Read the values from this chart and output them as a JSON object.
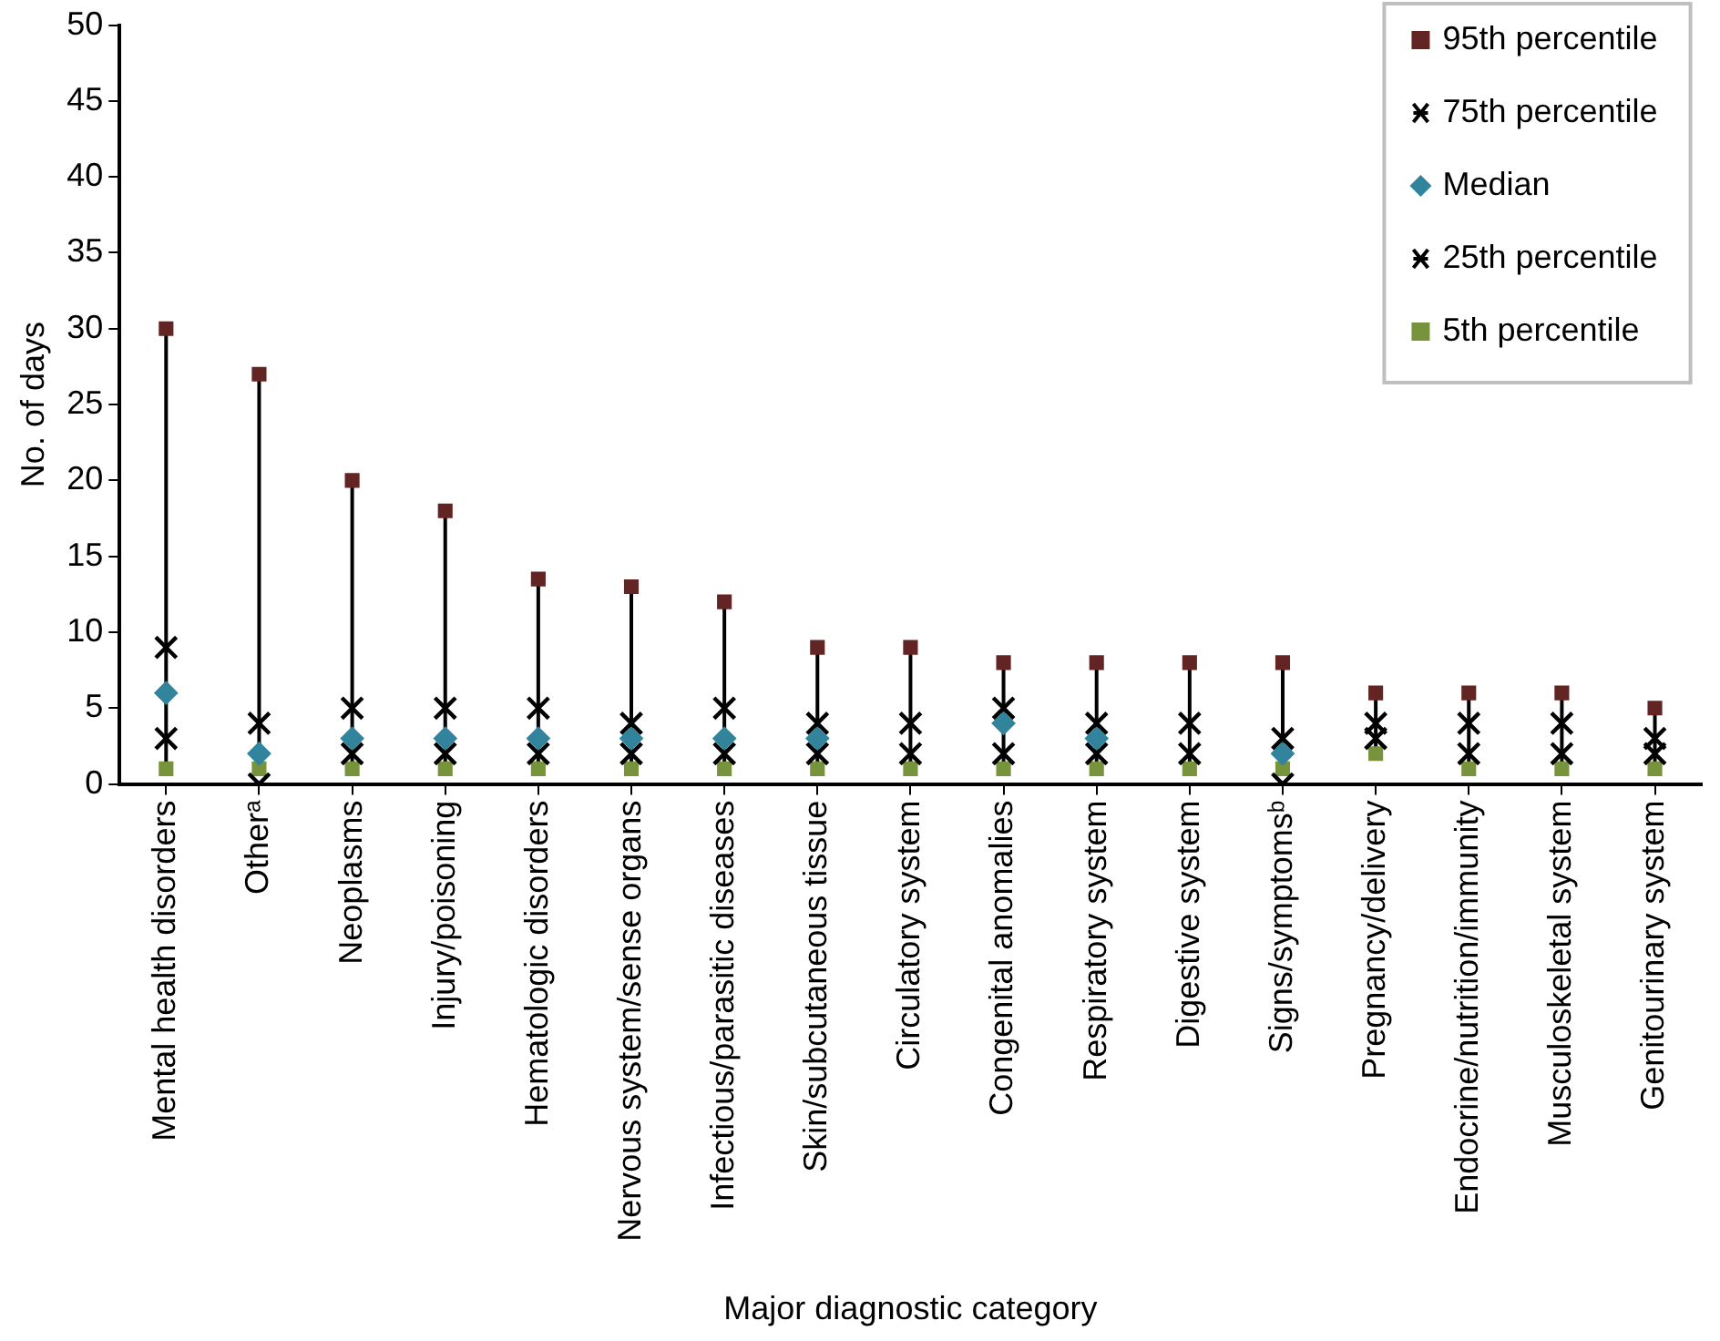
{
  "chart_data": {
    "type": "scatter",
    "xlabel": "Major diagnostic category",
    "ylabel": "No. of days",
    "categories": [
      "Mental health disorders",
      "Otherᵃ",
      "Neoplasms",
      "Injury/poisoning",
      "Hematologic disorders",
      "Nervous system/sense organs",
      "Infectious/parasitic diseases",
      "Skin/subcutaneous tissue",
      "Circulatory system",
      "Congenital anomalies",
      "Respiratory system",
      "Digestive system",
      "Signs/symptomsᵇ",
      "Pregnancy/delivery",
      "Endocrine/nutrition/immunity",
      "Musculoskeletal system",
      "Genitourinary system"
    ],
    "series": [
      {
        "name": "95th percentile",
        "color": "#632523",
        "marker": "square",
        "values": [
          30,
          27,
          20,
          18,
          13.5,
          13,
          12,
          9,
          9,
          8,
          8,
          8,
          8,
          6,
          6,
          6,
          5
        ]
      },
      {
        "name": "75th percentile",
        "color": "#000000",
        "marker": "cross",
        "values": [
          9,
          4,
          5,
          5,
          5,
          4,
          5,
          4,
          4,
          5,
          4,
          4,
          3,
          4,
          4,
          4,
          3
        ]
      },
      {
        "name": "Median",
        "color": "#31849b",
        "marker": "diamond",
        "values": [
          6,
          2,
          3,
          3,
          3,
          3,
          3,
          3,
          null,
          4,
          3,
          null,
          2,
          null,
          null,
          null,
          null
        ]
      },
      {
        "name": "25th percentile",
        "color": "#000000",
        "marker": "cross",
        "values": [
          3,
          0,
          2,
          2,
          2,
          2,
          2,
          2,
          2,
          2,
          2,
          2,
          0,
          3,
          2,
          2,
          2
        ]
      },
      {
        "name": "5th percentile",
        "color": "#77933c",
        "marker": "square",
        "values": [
          1,
          1,
          1,
          1,
          1,
          1,
          1,
          1,
          1,
          1,
          1,
          1,
          1,
          2,
          1,
          1,
          1
        ]
      }
    ],
    "ylim": [
      0,
      50
    ],
    "yticks": [
      0,
      5,
      10,
      15,
      20,
      25,
      30,
      35,
      40,
      45,
      50
    ],
    "grid": false,
    "legend": "top right"
  }
}
